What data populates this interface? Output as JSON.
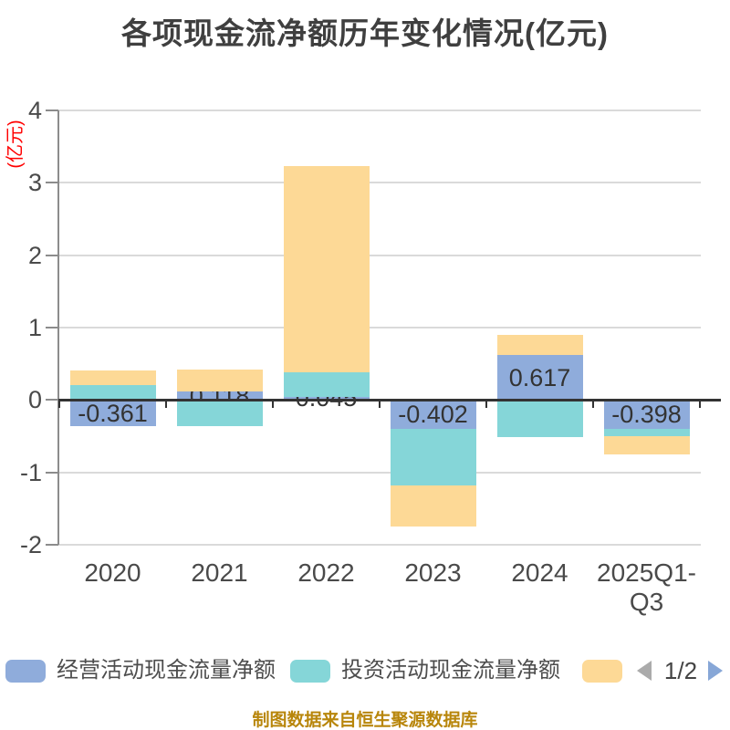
{
  "title": "各项现金流净额历年变化情况(亿元)",
  "y_axis_unit": "(亿元)",
  "source_note": "制图数据来自恒生聚源数据库",
  "pagination": {
    "label": "1/2",
    "prev_color": "#ababab",
    "next_color": "#87a7d7"
  },
  "legend": {
    "items": [
      {
        "label": "经营活动现金流量净额",
        "color": "#8facdb"
      },
      {
        "label": "投资活动现金流量净额",
        "color": "#85d6d8"
      },
      {
        "label": "",
        "color": "#fdd996"
      }
    ]
  },
  "colors": {
    "title": "#3f3f3f",
    "y_unit": "#ff0000",
    "source_note": "#b8860b",
    "legend_text": "#4d4d4d",
    "page_text": "#444444"
  },
  "chart_data": {
    "type": "bar",
    "stacked": true,
    "title": "各项现金流净额历年变化情况(亿元)",
    "ylabel": "(亿元)",
    "categories": [
      "2020",
      "2021",
      "2022",
      "2023",
      "2024",
      "2025Q1-Q3"
    ],
    "series": [
      {
        "name": "经营活动现金流量净额",
        "color": "#8facdb",
        "values": [
          -0.361,
          0.118,
          0.045,
          -0.402,
          0.617,
          -0.398
        ],
        "data_labels": [
          "-0.361",
          "0.118",
          "0.045",
          "-0.402",
          "0.617",
          "-0.398"
        ]
      },
      {
        "name": "投资活动现金流量净额",
        "color": "#85d6d8",
        "values": [
          0.21,
          -0.36,
          0.33,
          -0.78,
          -0.52,
          -0.1
        ]
      },
      {
        "name": "",
        "color": "#fdd996",
        "values": [
          0.19,
          0.3,
          2.85,
          -0.57,
          0.28,
          -0.26
        ]
      }
    ],
    "ylim": [
      -2,
      4
    ],
    "yticks": [
      4,
      3,
      2,
      1,
      0,
      -1,
      -2
    ],
    "grid": true,
    "legend_position": "bottom",
    "axis_colors": {
      "grid_line": "#dadada",
      "y_axis_line": "#8c8c8c",
      "zero_axis_line": "#333333",
      "tick_label": "#4a4a4a",
      "bar_label": "#333333"
    }
  }
}
